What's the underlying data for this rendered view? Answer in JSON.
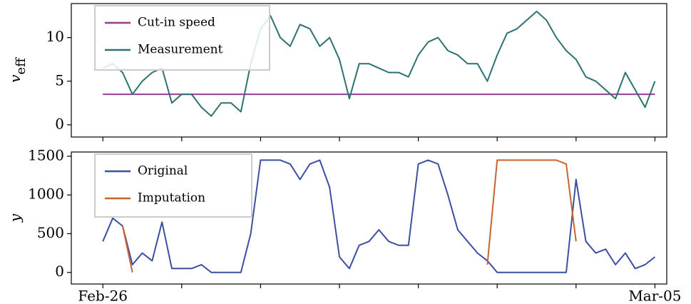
{
  "chart_data": [
    {
      "type": "line",
      "ylabel": "v",
      "ylabel_sub": "eff",
      "xlim": [
        -0.4,
        7.15
      ],
      "xminor_ticks": [
        0,
        1,
        2,
        3,
        4,
        5,
        6,
        7
      ],
      "ylim": [
        -1.4,
        13.9
      ],
      "yticks": [
        0,
        5,
        10
      ],
      "legend": "upper left",
      "series": [
        {
          "name": "Cut-in speed",
          "color": "#9b3a94",
          "x": [
            0,
            7
          ],
          "values": [
            3.5,
            3.5
          ]
        },
        {
          "name": "Measurement",
          "color": "#2d7272",
          "x": [
            0,
            0.125,
            0.25,
            0.375,
            0.5,
            0.625,
            0.75,
            0.875,
            1,
            1.125,
            1.25,
            1.375,
            1.5,
            1.625,
            1.75,
            1.875,
            2,
            2.125,
            2.25,
            2.375,
            2.5,
            2.625,
            2.75,
            2.875,
            3,
            3.125,
            3.25,
            3.375,
            3.5,
            3.625,
            3.75,
            3.875,
            4,
            4.125,
            4.25,
            4.375,
            4.5,
            4.625,
            4.75,
            4.875,
            5,
            5.125,
            5.25,
            5.375,
            5.5,
            5.625,
            5.75,
            5.875,
            6,
            6.125,
            6.25,
            6.375,
            6.5,
            6.625,
            6.75,
            6.875,
            7
          ],
          "values": [
            6.5,
            7,
            6,
            3.5,
            5,
            6,
            6.5,
            2.5,
            3.5,
            3.5,
            2,
            1,
            2.5,
            2.5,
            1.5,
            7,
            11,
            12.5,
            10,
            9,
            11.5,
            11,
            9,
            10,
            7.5,
            3,
            7,
            7,
            6.5,
            6,
            6,
            5.5,
            8,
            9.5,
            10,
            8.5,
            8,
            7,
            7,
            5,
            8,
            10.5,
            11,
            12,
            13,
            12,
            10,
            8.5,
            7.5,
            5.5,
            5,
            4,
            3,
            6,
            4,
            2,
            5
          ]
        }
      ]
    },
    {
      "type": "line",
      "ylabel": "y",
      "xlim": [
        -0.4,
        7.15
      ],
      "xticks": [
        {
          "value": 0,
          "label": "Feb-26"
        },
        {
          "value": 7,
          "label": "Mar-05"
        }
      ],
      "xminor_ticks": [
        1,
        2,
        3,
        4,
        5,
        6
      ],
      "ylim": [
        -150,
        1555
      ],
      "yticks": [
        0,
        500,
        1000,
        1500
      ],
      "legend": "upper left",
      "series": [
        {
          "name": "Original",
          "color": "#3b4fa3",
          "x": [
            0,
            0.125,
            0.25,
            0.375,
            0.5,
            0.625,
            0.75,
            0.875,
            1,
            1.125,
            1.25,
            1.375,
            1.5,
            1.625,
            1.75,
            1.875,
            2,
            2.125,
            2.25,
            2.375,
            2.5,
            2.625,
            2.75,
            2.875,
            3,
            3.125,
            3.25,
            3.375,
            3.5,
            3.625,
            3.75,
            3.875,
            4,
            4.125,
            4.25,
            4.375,
            4.5,
            4.625,
            4.75,
            4.875,
            5,
            5.125,
            5.25,
            5.375,
            5.5,
            5.625,
            5.75,
            5.875,
            6,
            6.125,
            6.25,
            6.375,
            6.5,
            6.625,
            6.75,
            6.875,
            7
          ],
          "values": [
            400,
            700,
            600,
            100,
            250,
            150,
            650,
            50,
            50,
            50,
            100,
            0,
            0,
            0,
            0,
            500,
            1450,
            1450,
            1450,
            1400,
            1200,
            1400,
            1450,
            1100,
            200,
            50,
            350,
            400,
            550,
            400,
            350,
            350,
            1400,
            1450,
            1400,
            1000,
            550,
            400,
            250,
            150,
            0,
            0,
            0,
            0,
            0,
            0,
            0,
            0,
            1200,
            400,
            250,
            300,
            100,
            250,
            50,
            100,
            200
          ]
        },
        {
          "name": "Imputation",
          "color": "#c8642c",
          "x": [
            0.25,
            0.375,
            0.5,
            4.875,
            5,
            5.125,
            5.25,
            5.375,
            5.5,
            5.625,
            5.75,
            5.875,
            6
          ],
          "values": [
            600,
            0,
            null,
            100,
            1450,
            1450,
            1450,
            1450,
            1450,
            1450,
            1450,
            1400,
            400
          ]
        }
      ]
    }
  ]
}
